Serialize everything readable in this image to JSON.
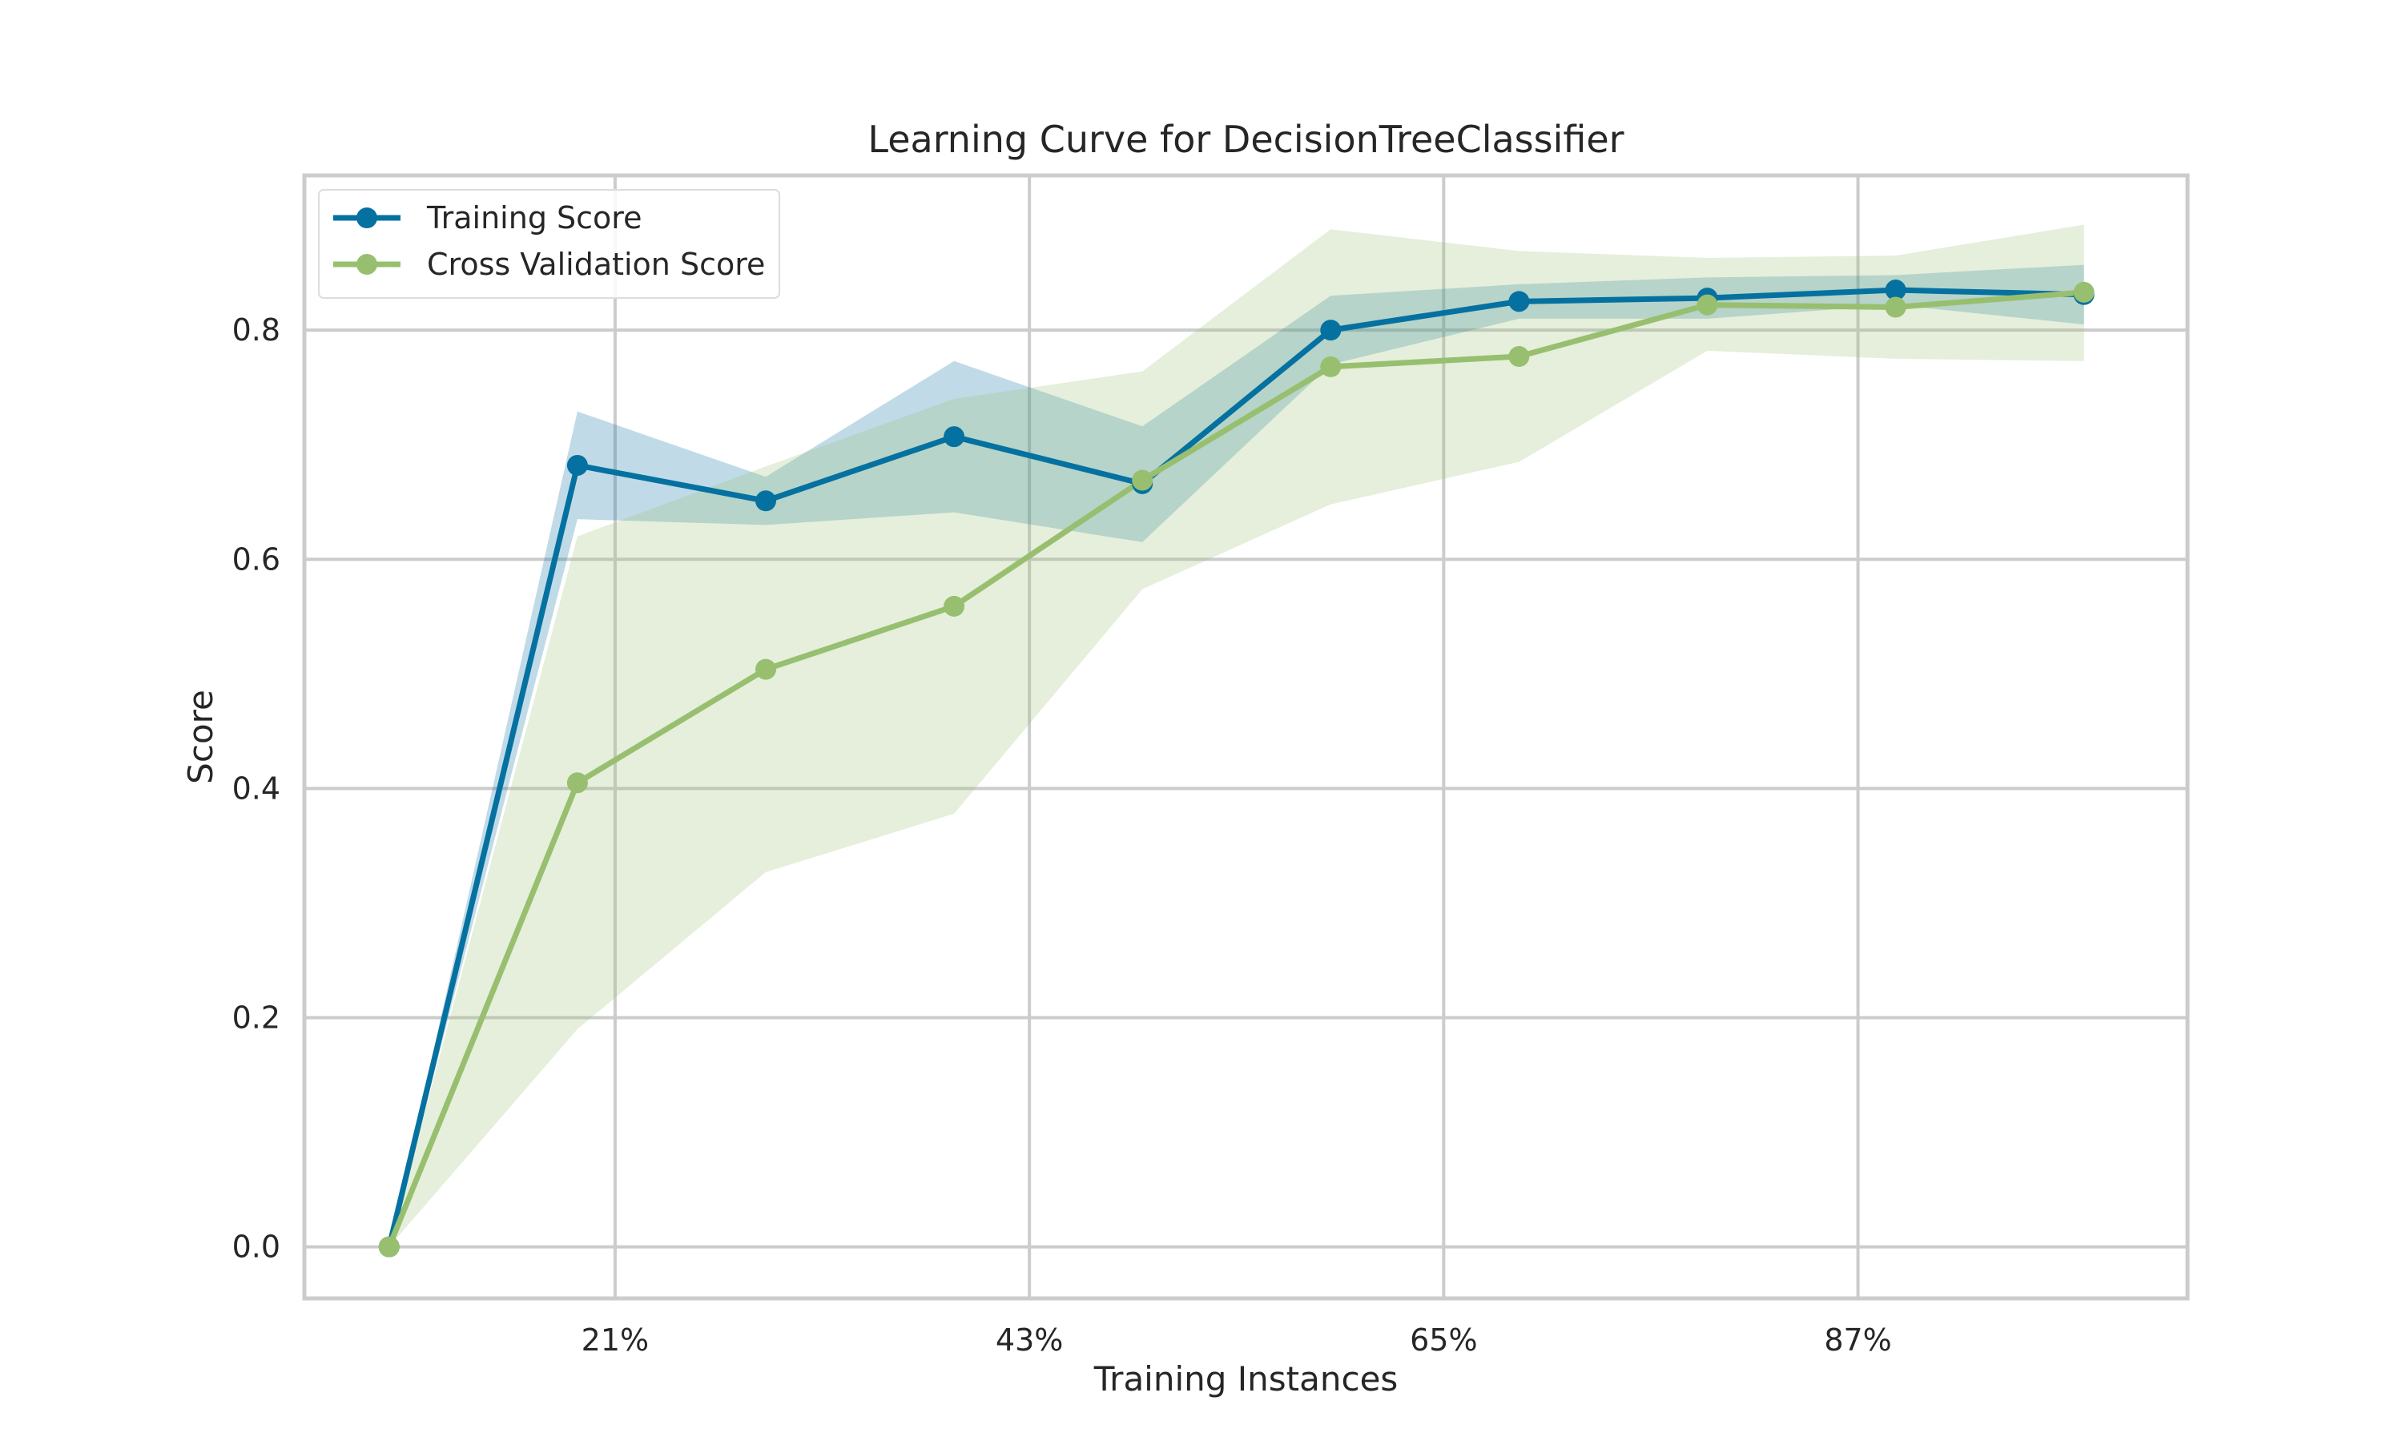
{
  "chart_data": {
    "type": "line",
    "title": "Learning Curve for DecisionTreeClassifier",
    "xlabel": "Training Instances",
    "ylabel": "Score",
    "x_tick_labels": [
      "21%",
      "43%",
      "65%",
      "87%"
    ],
    "x_tick_values": [
      21,
      43,
      65,
      87
    ],
    "y_tick_labels": [
      "0.0",
      "0.2",
      "0.4",
      "0.6",
      "0.8"
    ],
    "y_tick_values": [
      0.0,
      0.2,
      0.4,
      0.6,
      0.8
    ],
    "xlim": [
      4.5,
      104.5
    ],
    "ylim": [
      -0.045,
      0.935
    ],
    "grid": true,
    "legend_position": "top-left",
    "x": [
      9,
      19,
      29,
      39,
      49,
      59,
      69,
      79,
      89,
      99
    ],
    "series": [
      {
        "name": "Training Score",
        "color": "#0571a0",
        "values": [
          0.0,
          0.682,
          0.651,
          0.707,
          0.666,
          0.8,
          0.825,
          0.828,
          0.835,
          0.831
        ],
        "band_lower": [
          0.0,
          0.635,
          0.63,
          0.641,
          0.615,
          0.77,
          0.81,
          0.81,
          0.822,
          0.805
        ],
        "band_upper": [
          0.0,
          0.729,
          0.672,
          0.773,
          0.716,
          0.83,
          0.84,
          0.846,
          0.848,
          0.857
        ]
      },
      {
        "name": "Cross Validation Score",
        "color": "#98bf6f",
        "values": [
          0.0,
          0.405,
          0.504,
          0.559,
          0.669,
          0.768,
          0.777,
          0.822,
          0.82,
          0.833
        ],
        "band_lower": [
          0.0,
          0.19,
          0.327,
          0.378,
          0.574,
          0.648,
          0.685,
          0.782,
          0.775,
          0.773
        ],
        "band_upper": [
          0.0,
          0.62,
          0.681,
          0.74,
          0.764,
          0.888,
          0.869,
          0.863,
          0.865,
          0.892
        ]
      }
    ]
  }
}
